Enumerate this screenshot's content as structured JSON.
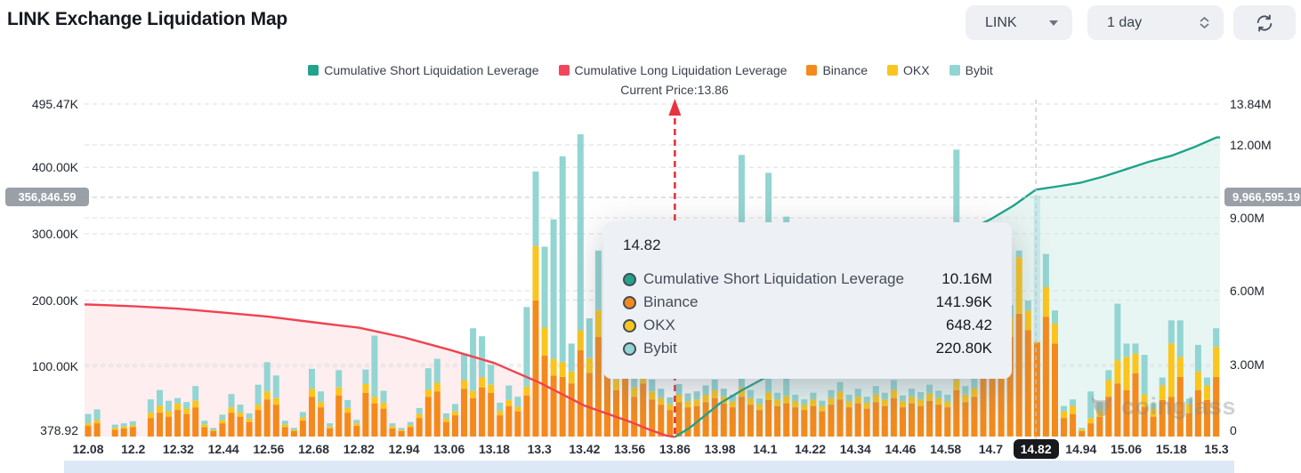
{
  "header": {
    "title": "LINK Exchange Liquidation Map"
  },
  "controls": {
    "symbol": {
      "label": "LINK",
      "icon": "caret-down-icon"
    },
    "interval": {
      "label": "1 day",
      "icon": "spinner-updown-icon"
    },
    "refresh": {
      "icon": "refresh-arrows-icon"
    }
  },
  "legend": {
    "items": [
      {
        "label": "Cumulative Short Liquidation Leverage",
        "color": "#22A38B"
      },
      {
        "label": "Cumulative Long Liquidation Leverage",
        "color": "#F0475A"
      },
      {
        "label": "Binance",
        "color": "#F48A1C"
      },
      {
        "label": "OKX",
        "color": "#FAC51D"
      },
      {
        "label": "Bybit",
        "color": "#92D5D2"
      }
    ]
  },
  "annotation": {
    "current_price_label": "Current Price:13.86"
  },
  "crosshair": {
    "x_label": "14.82",
    "left_value": "356,846.59",
    "right_value": "9,966,595.19"
  },
  "tooltip": {
    "title": "14.82",
    "rows": [
      {
        "label": "Cumulative Short Liquidation Leverage",
        "value": "10.16M",
        "color": "#22A38B"
      },
      {
        "label": "Binance",
        "value": "141.96K",
        "color": "#F48A1C"
      },
      {
        "label": "OKX",
        "value": "648.42",
        "color": "#FAC51D"
      },
      {
        "label": "Bybit",
        "value": "220.80K",
        "color": "#92D5D2"
      }
    ]
  },
  "watermark": {
    "text": "coinglass"
  },
  "chart_data": {
    "type": "mixed: stacked bars + cumulative area lines",
    "title": "LINK Exchange Liquidation Map",
    "current_price": 13.86,
    "x_categories": [
      "12.08",
      "12.2",
      "12.32",
      "12.44",
      "12.56",
      "12.68",
      "12.82",
      "12.94",
      "13.06",
      "13.18",
      "13.3",
      "13.42",
      "13.56",
      "13.86",
      "13.98",
      "14.1",
      "14.22",
      "14.34",
      "14.46",
      "14.58",
      "14.7",
      "14.82",
      "14.94",
      "15.06",
      "15.18",
      "15.3"
    ],
    "left_axis": {
      "unit": "K",
      "ticks": [
        {
          "text": "495.47K",
          "value": 495.47
        },
        {
          "text": "400.00K",
          "value": 400
        },
        {
          "text": "300.00K",
          "value": 300
        },
        {
          "text": "200.00K",
          "value": 200
        },
        {
          "text": "100.00K",
          "value": 100
        },
        {
          "text": "378.92",
          "value": 0.379
        }
      ]
    },
    "right_axis": {
      "unit": "M",
      "ticks": [
        {
          "text": "13.84M",
          "value": 13.84
        },
        {
          "text": "12.00M",
          "value": 12
        },
        {
          "text": "9.00M",
          "value": 9
        },
        {
          "text": "6.00M",
          "value": 6
        },
        {
          "text": "3.00M",
          "value": 3
        },
        {
          "text": "0",
          "value": 0
        }
      ]
    },
    "series": [
      {
        "name": "Binance",
        "type": "bar",
        "color": "#F48A1C"
      },
      {
        "name": "OKX",
        "type": "bar",
        "color": "#FAC51D"
      },
      {
        "name": "Bybit",
        "type": "bar",
        "color": "#92D5D2"
      }
    ],
    "bars": {
      "note": "stacked [Binance,OKX,Bybit] in thousands (left axis), 127 price buckets spanning 12.08-15.3",
      "highlight_index": 106,
      "highlight_bybit_color": "#C7EBE9",
      "values": [
        [
          16,
          4,
          14
        ],
        [
          20,
          5,
          16
        ],
        [
          0,
          0,
          0
        ],
        [
          10,
          3,
          5
        ],
        [
          12,
          3,
          5
        ],
        [
          14,
          3,
          6
        ],
        [
          0,
          0,
          0
        ],
        [
          28,
          8,
          20
        ],
        [
          36,
          10,
          24
        ],
        [
          30,
          8,
          16
        ],
        [
          40,
          10,
          8
        ],
        [
          34,
          8,
          10
        ],
        [
          44,
          10,
          22
        ],
        [
          14,
          4,
          6
        ],
        [
          8,
          2,
          3
        ],
        [
          20,
          5,
          8
        ],
        [
          36,
          8,
          20
        ],
        [
          30,
          6,
          12
        ],
        [
          22,
          5,
          8
        ],
        [
          40,
          8,
          30
        ],
        [
          56,
          12,
          44
        ],
        [
          48,
          10,
          34
        ],
        [
          14,
          4,
          6
        ],
        [
          8,
          2,
          3
        ],
        [
          24,
          5,
          8
        ],
        [
          60,
          12,
          30
        ],
        [
          44,
          8,
          16
        ],
        [
          12,
          3,
          5
        ],
        [
          62,
          12,
          26
        ],
        [
          36,
          7,
          12
        ],
        [
          16,
          4,
          5
        ],
        [
          66,
          13,
          22
        ],
        [
          50,
          10,
          92
        ],
        [
          42,
          9,
          18
        ],
        [
          12,
          3,
          5
        ],
        [
          8,
          2,
          3
        ],
        [
          14,
          3,
          5
        ],
        [
          28,
          6,
          9
        ],
        [
          60,
          11,
          32
        ],
        [
          68,
          13,
          36
        ],
        [
          22,
          5,
          8
        ],
        [
          32,
          6,
          11
        ],
        [
          72,
          13,
          40
        ],
        [
          58,
          11,
          94
        ],
        [
          74,
          15,
          62
        ],
        [
          66,
          12,
          30
        ],
        [
          32,
          7,
          12
        ],
        [
          46,
          9,
          22
        ],
        [
          38,
          7,
          15
        ],
        [
          62,
          13,
          120
        ],
        [
          205,
          82,
          112
        ],
        [
          122,
          42,
          122
        ],
        [
          92,
          25,
          210
        ],
        [
          90,
          22,
          310
        ],
        [
          80,
          18,
          42
        ],
        [
          130,
          30,
          295
        ],
        [
          96,
          22,
          60
        ],
        [
          150,
          40,
          90
        ],
        [
          120,
          30,
          60
        ],
        [
          70,
          16,
          28
        ],
        [
          90,
          20,
          40
        ],
        [
          60,
          14,
          20
        ],
        [
          80,
          18,
          30
        ],
        [
          56,
          12,
          18
        ],
        [
          48,
          10,
          14
        ],
        [
          40,
          9,
          10
        ],
        [
          52,
          11,
          16
        ],
        [
          44,
          9,
          12
        ],
        [
          46,
          10,
          12
        ],
        [
          52,
          11,
          14
        ],
        [
          58,
          12,
          16
        ],
        [
          50,
          10,
          12
        ],
        [
          44,
          9,
          10
        ],
        [
          60,
          14,
          350
        ],
        [
          48,
          10,
          12
        ],
        [
          40,
          9,
          8
        ],
        [
          55,
          12,
          330
        ],
        [
          46,
          10,
          10
        ],
        [
          50,
          11,
          270
        ],
        [
          44,
          9,
          10
        ],
        [
          40,
          8,
          8
        ],
        [
          46,
          10,
          10
        ],
        [
          38,
          8,
          8
        ],
        [
          48,
          10,
          12
        ],
        [
          56,
          12,
          14
        ],
        [
          44,
          9,
          10
        ],
        [
          50,
          10,
          12
        ],
        [
          42,
          9,
          9
        ],
        [
          52,
          11,
          13
        ],
        [
          46,
          10,
          10
        ],
        [
          58,
          12,
          15
        ],
        [
          44,
          9,
          9
        ],
        [
          50,
          10,
          12
        ],
        [
          46,
          10,
          11
        ],
        [
          54,
          11,
          13
        ],
        [
          48,
          10,
          11
        ],
        [
          44,
          9,
          10
        ],
        [
          70,
          16,
          346
        ],
        [
          52,
          11,
          13
        ],
        [
          60,
          13,
          15
        ],
        [
          170,
          30,
          20
        ],
        [
          205,
          40,
          25
        ],
        [
          160,
          55,
          15
        ],
        [
          150,
          30,
          18
        ],
        [
          185,
          85,
          10
        ],
        [
          160,
          30,
          15
        ],
        [
          141.96,
          0.65,
          220.8
        ],
        [
          180,
          45,
          50
        ],
        [
          140,
          30,
          20
        ],
        [
          28,
          10,
          8
        ],
        [
          34,
          12,
          10
        ],
        [
          8,
          3,
          2
        ],
        [
          20,
          8,
          40
        ],
        [
          30,
          10,
          12
        ],
        [
          60,
          25,
          15
        ],
        [
          80,
          35,
          85
        ],
        [
          70,
          50,
          20
        ],
        [
          95,
          30,
          15
        ],
        [
          45,
          18,
          60
        ],
        [
          30,
          12,
          8
        ],
        [
          55,
          22,
          12
        ],
        [
          60,
          80,
          35
        ],
        [
          90,
          30,
          55
        ],
        [
          35,
          14,
          8
        ],
        [
          70,
          28,
          40
        ],
        [
          55,
          22,
          12
        ],
        [
          90,
          45,
          28
        ]
      ]
    },
    "lines": {
      "cumulative_long": {
        "name": "Cumulative Long Liquidation Leverage",
        "color": "#F0424F",
        "fill": "rgba(242,70,88,0.09)",
        "unit": "M",
        "points": [
          [
            12.08,
            5.45
          ],
          [
            12.2,
            5.38
          ],
          [
            12.32,
            5.28
          ],
          [
            12.44,
            5.12
          ],
          [
            12.56,
            4.95
          ],
          [
            12.68,
            4.72
          ],
          [
            12.82,
            4.5
          ],
          [
            12.94,
            4.1
          ],
          [
            13.06,
            3.6
          ],
          [
            13.18,
            3.05
          ],
          [
            13.3,
            2.25
          ],
          [
            13.42,
            1.3
          ],
          [
            13.56,
            0.65
          ],
          [
            13.7,
            0.3
          ],
          [
            13.8,
            0.08
          ],
          [
            13.86,
            0.02
          ]
        ]
      },
      "cumulative_short": {
        "name": "Cumulative Short Liquidation Leverage",
        "color": "#1FA38A",
        "fill": "rgba(34,166,140,0.10)",
        "unit": "M",
        "points": [
          [
            13.86,
            0.02
          ],
          [
            13.9,
            0.4
          ],
          [
            13.94,
            0.9
          ],
          [
            13.98,
            1.4
          ],
          [
            14.04,
            1.95
          ],
          [
            14.1,
            2.45
          ],
          [
            14.16,
            3.0
          ],
          [
            14.22,
            3.65
          ],
          [
            14.28,
            4.3
          ],
          [
            14.34,
            5.0
          ],
          [
            14.4,
            5.8
          ],
          [
            14.46,
            6.6
          ],
          [
            14.52,
            7.3
          ],
          [
            14.58,
            7.95
          ],
          [
            14.64,
            8.5
          ],
          [
            14.7,
            8.95
          ],
          [
            14.76,
            9.5
          ],
          [
            14.82,
            10.16
          ],
          [
            14.88,
            10.3
          ],
          [
            14.94,
            10.45
          ],
          [
            15.0,
            10.7
          ],
          [
            15.06,
            11.0
          ],
          [
            15.12,
            11.3
          ],
          [
            15.18,
            11.55
          ],
          [
            15.24,
            11.9
          ],
          [
            15.3,
            12.3
          ]
        ]
      }
    }
  }
}
